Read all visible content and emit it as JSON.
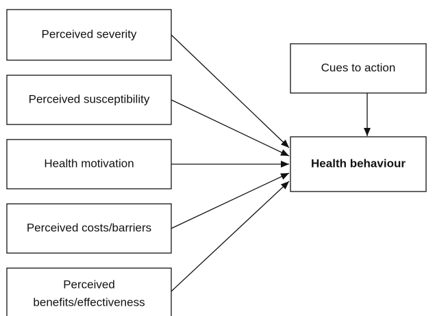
{
  "nodes": [
    {
      "lines": [
        "Perceived severity"
      ]
    },
    {
      "lines": [
        "Perceived susceptibility"
      ]
    },
    {
      "lines": [
        "Health motivation"
      ]
    },
    {
      "lines": [
        "Perceived costs/barriers"
      ]
    },
    {
      "lines": [
        "Perceived",
        "benefits/effectiveness"
      ]
    },
    {
      "lines": [
        "Cues to action"
      ]
    },
    {
      "lines": [
        "Health behaviour"
      ]
    }
  ]
}
